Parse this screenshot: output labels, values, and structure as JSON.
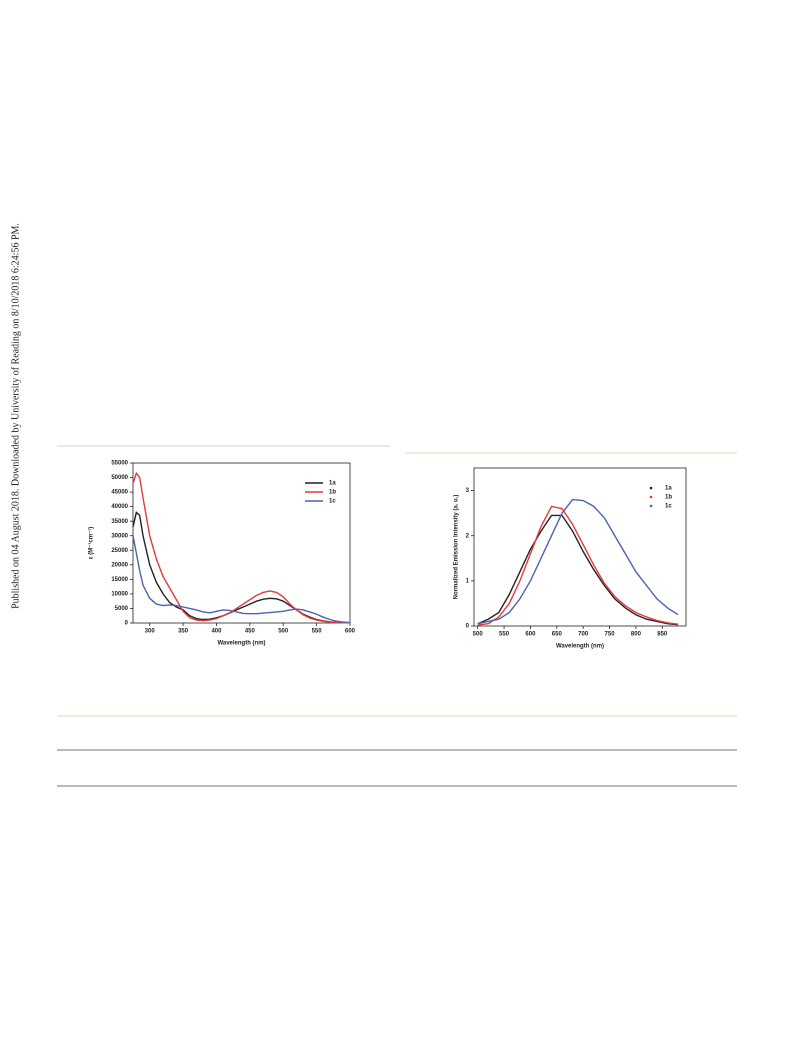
{
  "sidebar_text": "Published on 04 August 2018. Downloaded by University of Reading on 8/10/2018 6:24:56 PM.",
  "chart_data": [
    {
      "type": "line",
      "x_label": "Wavelength (nm)",
      "y_label": "ε (M⁻¹cm⁻¹)",
      "x": [
        275,
        280,
        285,
        290,
        300,
        310,
        320,
        330,
        340,
        350,
        360,
        370,
        380,
        390,
        400,
        410,
        420,
        430,
        440,
        450,
        460,
        470,
        480,
        490,
        500,
        510,
        520,
        530,
        540,
        550,
        560,
        570,
        580,
        590,
        600
      ],
      "xlim": [
        275,
        600
      ],
      "xticks": [
        300,
        350,
        400,
        450,
        500,
        550,
        600
      ],
      "ylim": [
        0,
        55000
      ],
      "yticks": [
        0,
        5000,
        10000,
        15000,
        20000,
        25000,
        30000,
        35000,
        40000,
        45000,
        50000,
        55000
      ],
      "legend": "upper right",
      "legend_marker": "line",
      "series": [
        {
          "name": "1a",
          "color": "#222222",
          "values": [
            33000,
            38000,
            37000,
            30000,
            20000,
            14000,
            10000,
            7000,
            5500,
            4500,
            2500,
            1500,
            1200,
            1300,
            1800,
            2500,
            3500,
            4500,
            5500,
            6500,
            7500,
            8200,
            8500,
            8300,
            7500,
            6000,
            4500,
            3000,
            2000,
            1200,
            700,
            400,
            200,
            100,
            50
          ]
        },
        {
          "name": "1b",
          "color": "#e8393a",
          "values": [
            48000,
            51500,
            50000,
            43000,
            30000,
            22000,
            16000,
            12000,
            8000,
            4000,
            1800,
            1000,
            800,
            1000,
            1500,
            2500,
            3500,
            5000,
            6500,
            8000,
            9500,
            10500,
            11000,
            10500,
            9000,
            6500,
            4500,
            2800,
            1700,
            1000,
            600,
            300,
            150,
            80,
            50
          ]
        },
        {
          "name": "1c",
          "color": "#4a63b0",
          "values": [
            30000,
            24000,
            18000,
            13000,
            8500,
            6500,
            6000,
            6200,
            6000,
            5500,
            5000,
            4500,
            3800,
            3500,
            4000,
            4500,
            4300,
            3800,
            3300,
            3200,
            3200,
            3400,
            3600,
            3800,
            4000,
            4500,
            4800,
            4500,
            3800,
            3000,
            2000,
            1200,
            600,
            300,
            150
          ]
        }
      ]
    },
    {
      "type": "line",
      "x_label": "Wavelength (nm)",
      "y_label": "Normalized Emission Intensity (a. u.)",
      "x": [
        500,
        520,
        540,
        560,
        580,
        600,
        620,
        640,
        660,
        680,
        700,
        720,
        740,
        760,
        780,
        800,
        820,
        840,
        860,
        880
      ],
      "xlim": [
        493,
        895
      ],
      "xticks": [
        500,
        550,
        600,
        650,
        700,
        750,
        800,
        850
      ],
      "ylim": [
        0,
        3.5
      ],
      "yticks": [
        0,
        1,
        2,
        3
      ],
      "legend": "upper right",
      "legend_marker": "dot",
      "series": [
        {
          "name": "1a",
          "color": "#222222",
          "values": [
            0.05,
            0.15,
            0.3,
            0.7,
            1.2,
            1.7,
            2.1,
            2.45,
            2.45,
            2.1,
            1.65,
            1.25,
            0.9,
            0.6,
            0.4,
            0.25,
            0.15,
            0.1,
            0.05,
            0.03
          ]
        },
        {
          "name": "1b",
          "color": "#e8393a",
          "values": [
            0.02,
            0.05,
            0.2,
            0.5,
            1.0,
            1.6,
            2.2,
            2.65,
            2.6,
            2.25,
            1.8,
            1.35,
            0.95,
            0.65,
            0.45,
            0.3,
            0.2,
            0.12,
            0.07,
            0.04
          ]
        },
        {
          "name": "1c",
          "color": "#4a63b0",
          "values": [
            0.05,
            0.1,
            0.15,
            0.3,
            0.6,
            1.0,
            1.5,
            2.0,
            2.5,
            2.8,
            2.78,
            2.65,
            2.4,
            2.0,
            1.6,
            1.2,
            0.9,
            0.6,
            0.4,
            0.25
          ]
        }
      ]
    }
  ]
}
